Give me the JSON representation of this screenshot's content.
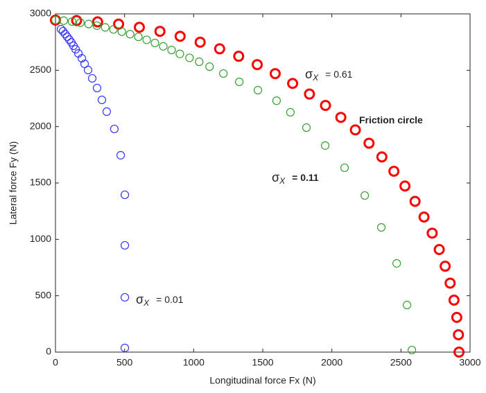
{
  "chart_data": {
    "type": "scatter",
    "xlabel": "Longitudinal force Fx (N)",
    "ylabel": "Lateral force Fy (N)",
    "xlim": [
      0,
      3000
    ],
    "ylim": [
      0,
      3000
    ],
    "xticks": [
      0,
      500,
      1000,
      1500,
      2000,
      2500,
      3000
    ],
    "yticks": [
      0,
      500,
      1000,
      1500,
      2000,
      2500,
      3000
    ],
    "series": [
      {
        "color": "#ff0000",
        "x": [
          0,
          153,
          305,
          457,
          607,
          756,
          902,
          1047,
          1188,
          1326,
          1460,
          1590,
          1716,
          1838,
          1954,
          2065,
          2170,
          2269,
          2362,
          2449,
          2529,
          2602,
          2667,
          2726,
          2777,
          2820,
          2856,
          2884,
          2904,
          2916,
          2920
        ],
        "values": [
          2945,
          2941,
          2929,
          2909,
          2881,
          2845,
          2801,
          2749,
          2690,
          2624,
          2550,
          2470,
          2383,
          2289,
          2188,
          2082,
          1971,
          1853,
          1731,
          1604,
          1473,
          1337,
          1198,
          1055,
          910,
          762,
          612,
          461,
          308,
          154,
          0
        ]
      },
      {
        "color": "#33a02c",
        "x": [
          0,
          60,
          120,
          180,
          240,
          300,
          360,
          420,
          480,
          540,
          600,
          660,
          720,
          780,
          840,
          900,
          970,
          1040,
          1115,
          1215,
          1330,
          1465,
          1600,
          1700,
          1816,
          1952,
          2092,
          2238,
          2358,
          2469,
          2544,
          2579
        ],
        "values": [
          2945,
          2940,
          2932,
          2922,
          2910,
          2896,
          2880,
          2862,
          2842,
          2820,
          2796,
          2770,
          2742,
          2712,
          2680,
          2645,
          2610,
          2575,
          2532,
          2471,
          2397,
          2323,
          2230,
          2127,
          1991,
          1832,
          1635,
          1389,
          1106,
          787,
          418,
          18
        ]
      },
      {
        "color": "#3333ff",
        "x": [
          40,
          55,
          70,
          85,
          100,
          115,
          130,
          146,
          166,
          191,
          211,
          236,
          266,
          301,
          336,
          371,
          426,
          472,
          502,
          502,
          502,
          502
        ],
        "values": [
          2864,
          2846,
          2821,
          2797,
          2772,
          2747,
          2717,
          2686,
          2649,
          2606,
          2557,
          2502,
          2428,
          2342,
          2237,
          2133,
          1979,
          1746,
          1395,
          947,
          486,
          37
        ]
      }
    ],
    "annotations": [
      {
        "symbol": "σ",
        "sub": "X",
        "text": "= 0.61"
      },
      {
        "text": "Friction circle"
      },
      {
        "symbol": "σ",
        "sub": "X",
        "text": "= 0.11"
      },
      {
        "symbol": "σ",
        "sub": "X",
        "text": "= 0.01"
      }
    ]
  }
}
